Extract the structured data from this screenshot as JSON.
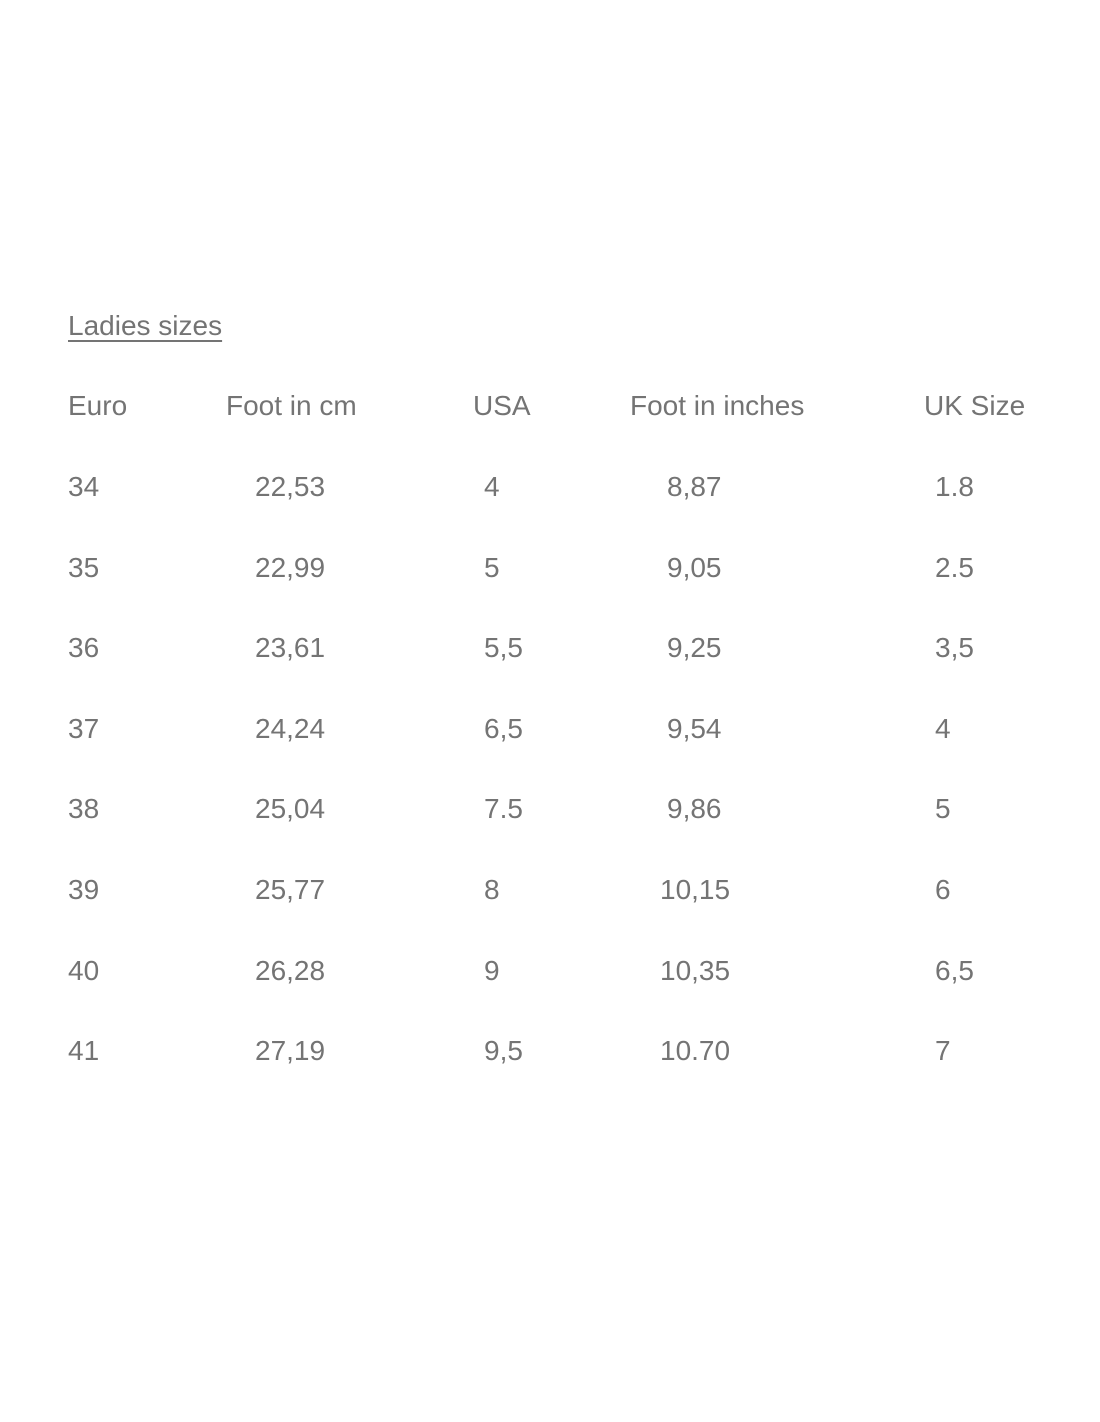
{
  "title": "Ladies sizes",
  "headers": [
    "Euro",
    "Foot in cm",
    "USA",
    "Foot in inches",
    "UK Size"
  ],
  "rows": [
    [
      "34",
      "22,53",
      "4",
      "8,87",
      "1.8"
    ],
    [
      "35",
      "22,99",
      "5",
      "9,05",
      "2.5"
    ],
    [
      "36",
      "23,61",
      "5,5",
      "9,25",
      "3,5"
    ],
    [
      "37",
      "24,24",
      "6,5",
      "9,54",
      "4"
    ],
    [
      "38",
      "25,04",
      "7.5",
      "9,86",
      "5"
    ],
    [
      "39",
      "25,77",
      "8",
      "10,15",
      "6"
    ],
    [
      "40",
      "26,28",
      "9",
      "10,35",
      "6,5"
    ],
    [
      "41",
      "27,19",
      "9,5",
      "10.70",
      "7"
    ]
  ]
}
